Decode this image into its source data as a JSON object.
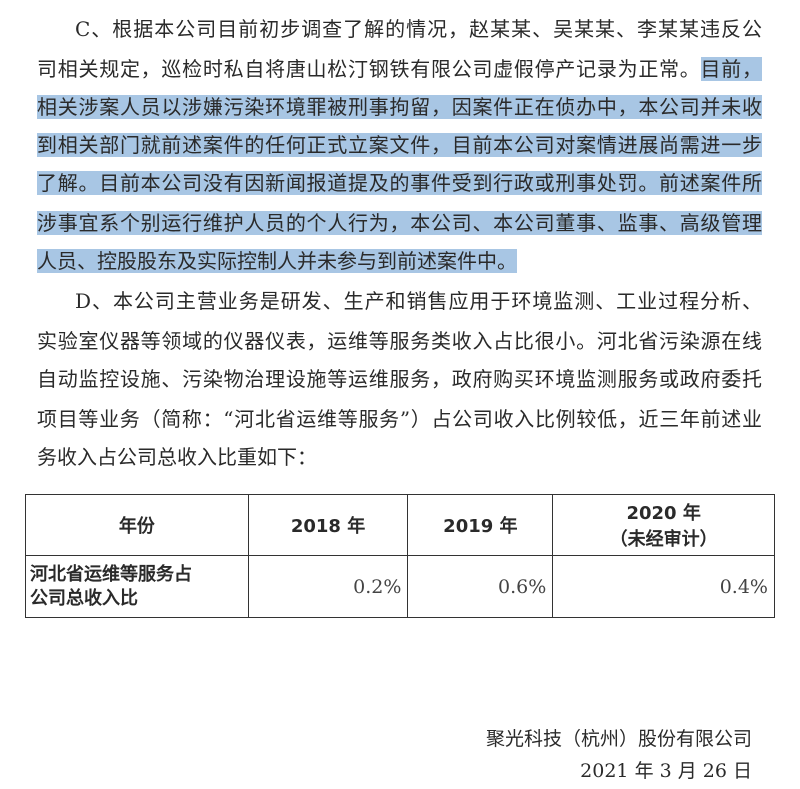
{
  "highlight_color": "#a8c6e4",
  "paragraph_c": [
    [
      {
        "t": "C、根据本公司目前初步调查了解的情况，赵某某、吴某某、李某某违反公",
        "h": false
      }
    ],
    [
      {
        "t": "司相关规定，巡检时私自将唐山松汀钢铁有限公司虚假停产记录为正常。",
        "h": false
      },
      {
        "t": "目前，",
        "h": true
      }
    ],
    [
      {
        "t": "相关涉案人员以涉嫌污染环境罪被刑事拘留，因案件正在侦办中，本公司并未收",
        "h": true
      }
    ],
    [
      {
        "t": "到相关部门就前述案件的任何正式立案文件，目前本公司对案情进展尚需进一步",
        "h": true
      }
    ],
    [
      {
        "t": "了解。目前本公司没有因新闻报道提及的事件受到行政或刑事处罚。前述案件所",
        "h": true
      }
    ],
    [
      {
        "t": "涉事宜系个别运行维护人员的个人行为，本公司、本公司董事、监事、高级管理",
        "h": true
      }
    ],
    [
      {
        "t": "人员、控股股东及实际控制人并未参与到前述案件中。",
        "h": true
      }
    ]
  ],
  "paragraph_d": [
    "D、本公司主营业务是研发、生产和销售应用于环境监测、工业过程分析、",
    "实验室仪器等领域的仪器仪表，运维等服务类收入占比很小。河北省污染源在线",
    "自动监控设施、污染物治理设施等运维服务，政府购买环境监测服务或政府委托",
    "项目等业务（简称：“河北省运维等服务”）占公司收入比例较低，近三年前述业",
    "务收入占公司总收入比重如下："
  ],
  "table": {
    "headers": [
      "年份",
      "2018 年",
      "2019 年",
      "2020 年",
      "（未经审计）"
    ],
    "row_label": [
      "河北省运维等服务占",
      "公司总收入比"
    ],
    "values": [
      "0.2%",
      "0.6%",
      "0.4%"
    ]
  },
  "footer": {
    "company": "聚光科技（杭州）股份有限公司",
    "date": "2021 年 3 月 26 日"
  }
}
